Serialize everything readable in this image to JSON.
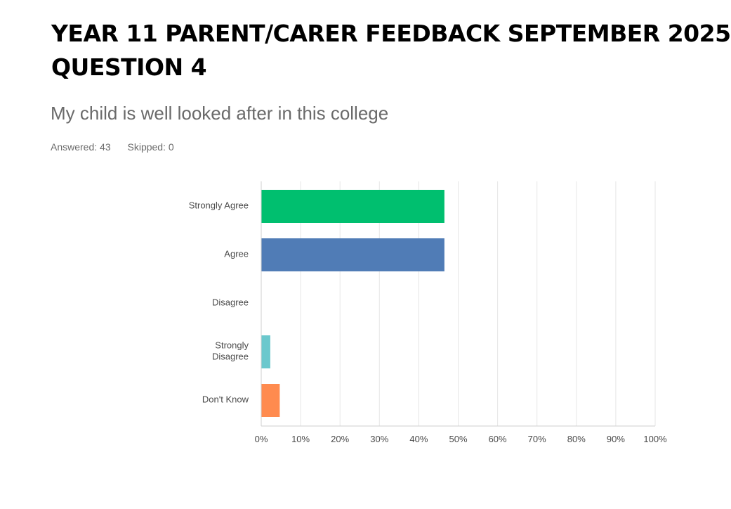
{
  "slide": {
    "title_line1": "YEAR 11 PARENT/CARER FEEDBACK SEPTEMBER 2025",
    "title_line2": "QUESTION 4"
  },
  "survey": {
    "question": "My child is well looked after in this college",
    "answered": "Answered: 43",
    "skipped": "Skipped: 0"
  },
  "chart_data": {
    "type": "bar",
    "orientation": "horizontal",
    "categories": [
      "Strongly Agree",
      "Agree",
      "Disagree",
      "Strongly Disagree",
      "Don't Know"
    ],
    "category_lines": [
      [
        "Strongly Agree"
      ],
      [
        "Agree"
      ],
      [
        "Disagree"
      ],
      [
        "Strongly",
        "Disagree"
      ],
      [
        "Don't Know"
      ]
    ],
    "values": [
      46.5,
      46.5,
      0,
      2.3,
      4.7
    ],
    "colors": [
      "#00bf6f",
      "#507cb6",
      "#f05b24",
      "#6bc8cd",
      "#ff8b4f"
    ],
    "xlim": [
      0,
      100
    ],
    "xticks": [
      0,
      10,
      20,
      30,
      40,
      50,
      60,
      70,
      80,
      90,
      100
    ],
    "xtick_labels": [
      "0%",
      "10%",
      "20%",
      "30%",
      "40%",
      "50%",
      "60%",
      "70%",
      "80%",
      "90%",
      "100%"
    ],
    "grid": true
  }
}
